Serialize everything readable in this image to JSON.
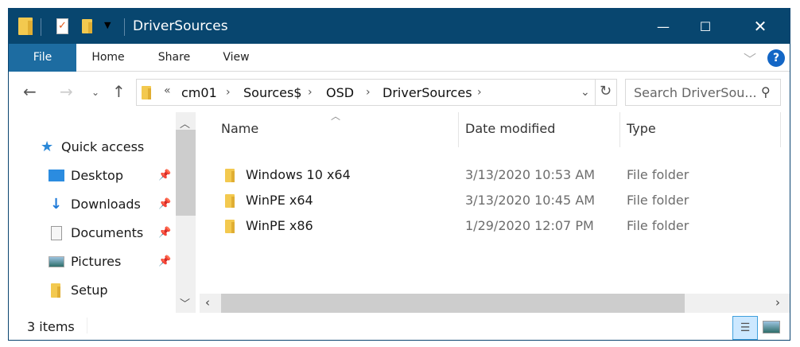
{
  "window": {
    "title": "DriverSources",
    "minimize_icon": "minimize-icon",
    "maximize_icon": "maximize-icon",
    "close_icon": "close-icon"
  },
  "ribbon": {
    "tabs": [
      "File",
      "Home",
      "Share",
      "View"
    ],
    "help": "?"
  },
  "address": {
    "overflow": "«",
    "crumbs": [
      "cm01",
      "Sources$",
      "OSD",
      "DriverSources"
    ]
  },
  "search": {
    "placeholder": "Search DriverSou..."
  },
  "nav": {
    "items": [
      {
        "label": "Quick access",
        "icon": "star-icon"
      },
      {
        "label": "Desktop",
        "icon": "desktop-icon",
        "pinned": true
      },
      {
        "label": "Downloads",
        "icon": "download-icon",
        "pinned": true
      },
      {
        "label": "Documents",
        "icon": "document-icon",
        "pinned": true
      },
      {
        "label": "Pictures",
        "icon": "pictures-icon",
        "pinned": true
      },
      {
        "label": "Setup",
        "icon": "folder-icon",
        "pinned": false
      }
    ]
  },
  "columns": [
    "Name",
    "Date modified",
    "Type"
  ],
  "files": [
    {
      "name": "Windows 10 x64",
      "date": "3/13/2020 10:53 AM",
      "type": "File folder"
    },
    {
      "name": "WinPE x64",
      "date": "3/13/2020 10:45 AM",
      "type": "File folder"
    },
    {
      "name": "WinPE x86",
      "date": "1/29/2020 12:07 PM",
      "type": "File folder"
    }
  ],
  "status": {
    "count": "3 items"
  },
  "colors": {
    "titlebar": "#08466f",
    "file_tab": "#1d6ca1",
    "folder": "#f3c94f"
  }
}
